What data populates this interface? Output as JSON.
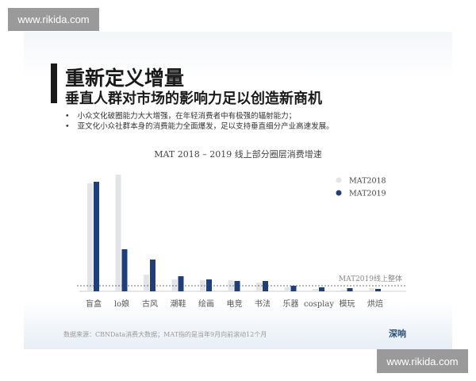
{
  "watermark": "www.rikida.com",
  "title": "重新定义增量",
  "subtitle": "垂直人群对市场的影响力足以创造新商机",
  "bullets": [
    "小众文化破圈能力大大增强，在年轻消费者中有极强的辐射能力；",
    "亚文化小众社群本身的消费能力全面爆发，足以支持垂直细分产业高速发展。"
  ],
  "footer": "数据来源：CBNData消费大数据；MAT指的是当年9月向前滚动12个月",
  "logo": "深响",
  "chart_data": {
    "type": "bar",
    "title": "MAT 2018 – 2019 线上部分圈层消费增速",
    "categories": [
      "盲盒",
      "lo娘",
      "古风",
      "潮鞋",
      "绘画",
      "电竞",
      "书法",
      "乐器",
      "cosplay",
      "模玩",
      "烘焙"
    ],
    "series": [
      {
        "name": "MAT2018",
        "color": "#e3e4e8",
        "values": [
          136,
          147,
          21,
          15,
          14,
          14,
          11,
          5,
          3,
          2,
          4
        ]
      },
      {
        "name": "MAT2019",
        "color": "#1f3f7a",
        "values": [
          138,
          53,
          40,
          19,
          15,
          13,
          13,
          7,
          5,
          4,
          3
        ]
      }
    ],
    "reference_line": {
      "label": "MAT2019线上整体",
      "value": 7
    },
    "legend": "top-right",
    "yaxis_shown": false,
    "grid": false
  }
}
